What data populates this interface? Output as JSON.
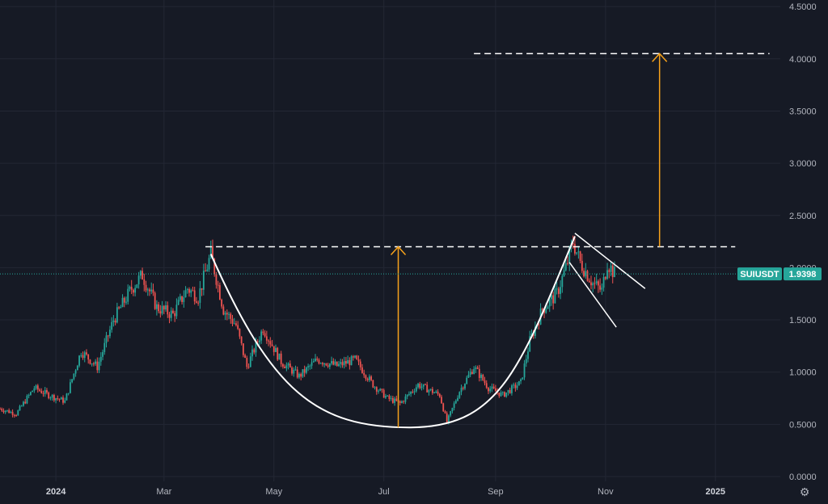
{
  "symbol": "SUIUSDT",
  "colors": {
    "background": "#161a25",
    "grid": "#232734",
    "axis_text": "#b2b5be",
    "up": "#26a69a",
    "down": "#ef5350",
    "price_tag": "#26a69a",
    "annotation": "#ffffff",
    "arrow": "#f7a21b"
  },
  "icons": {
    "settings": "gear-icon"
  },
  "chart_data": {
    "type": "candlestick",
    "title": "",
    "xlabel": "",
    "ylabel": "",
    "grid": true,
    "ylim": [
      0,
      4.6
    ],
    "x_range": [
      "2023-12-01",
      "2025-02-06"
    ],
    "y_ticks": [
      "4.5000",
      "4.0000",
      "3.5000",
      "3.0000",
      "2.5000",
      "2.0000",
      "1.5000",
      "1.0000",
      "0.5000",
      "0.0000"
    ],
    "x_ticks": [
      {
        "label": "2024",
        "date": "2024-01-01",
        "bold": true
      },
      {
        "label": "Mar",
        "date": "2024-03-01",
        "bold": false
      },
      {
        "label": "May",
        "date": "2024-05-01",
        "bold": false
      },
      {
        "label": "Jul",
        "date": "2024-07-01",
        "bold": false
      },
      {
        "label": "Sep",
        "date": "2024-09-01",
        "bold": false
      },
      {
        "label": "Nov",
        "date": "2024-11-01",
        "bold": false
      },
      {
        "label": "2025",
        "date": "2025-01-01",
        "bold": true
      }
    ],
    "last_price": 1.9398,
    "last_price_label": "1.9398",
    "close_path": [
      [
        "2023-12-01",
        0.65
      ],
      [
        "2023-12-10",
        0.6
      ],
      [
        "2023-12-20",
        0.85
      ],
      [
        "2023-12-28",
        0.78
      ],
      [
        "2024-01-06",
        0.72
      ],
      [
        "2024-01-15",
        1.2
      ],
      [
        "2024-01-24",
        1.05
      ],
      [
        "2024-02-02",
        1.5
      ],
      [
        "2024-02-12",
        1.8
      ],
      [
        "2024-02-18",
        1.93
      ],
      [
        "2024-02-26",
        1.62
      ],
      [
        "2024-03-06",
        1.55
      ],
      [
        "2024-03-14",
        1.8
      ],
      [
        "2024-03-20",
        1.72
      ],
      [
        "2024-03-27",
        2.13
      ],
      [
        "2024-04-03",
        1.6
      ],
      [
        "2024-04-10",
        1.45
      ],
      [
        "2024-04-16",
        1.05
      ],
      [
        "2024-04-25",
        1.42
      ],
      [
        "2024-05-05",
        1.1
      ],
      [
        "2024-05-15",
        0.96
      ],
      [
        "2024-05-25",
        1.12
      ],
      [
        "2024-06-05",
        1.06
      ],
      [
        "2024-06-15",
        1.12
      ],
      [
        "2024-06-25",
        0.88
      ],
      [
        "2024-07-03",
        0.75
      ],
      [
        "2024-07-10",
        0.7
      ],
      [
        "2024-07-20",
        0.88
      ],
      [
        "2024-08-01",
        0.78
      ],
      [
        "2024-08-05",
        0.52
      ],
      [
        "2024-08-12",
        0.82
      ],
      [
        "2024-08-20",
        1.05
      ],
      [
        "2024-08-28",
        0.85
      ],
      [
        "2024-09-05",
        0.78
      ],
      [
        "2024-09-15",
        0.9
      ],
      [
        "2024-09-20",
        1.3
      ],
      [
        "2024-09-27",
        1.6
      ],
      [
        "2024-10-05",
        1.75
      ],
      [
        "2024-10-10",
        2.0
      ],
      [
        "2024-10-14",
        2.25
      ],
      [
        "2024-10-18",
        2.05
      ],
      [
        "2024-10-25",
        1.85
      ],
      [
        "2024-10-30",
        1.78
      ],
      [
        "2024-11-02",
        2.05
      ],
      [
        "2024-11-06",
        1.94
      ]
    ],
    "annotations": {
      "resistance_line": {
        "y": 2.2,
        "from": "2024-03-24",
        "to": "2025-01-12"
      },
      "target_line": {
        "y": 4.05,
        "from": "2024-08-20",
        "to": "2025-01-31"
      },
      "cup_curve": {
        "start": [
          "2024-03-27",
          2.13
        ],
        "bottom": [
          "2024-07-15",
          0.47
        ],
        "end": [
          "2024-10-15",
          2.3
        ]
      },
      "handle_upper": {
        "from": [
          "2024-10-15",
          2.33
        ],
        "to": [
          "2024-11-23",
          1.8
        ]
      },
      "handle_lower": {
        "from": [
          "2024-10-12",
          2.05
        ],
        "to": [
          "2024-11-07",
          1.43
        ]
      },
      "arrow_cup": {
        "date": "2024-07-09",
        "from": 0.47,
        "to": 2.2
      },
      "arrow_target": {
        "date": "2024-12-01",
        "from": 2.2,
        "to": 4.05
      }
    }
  }
}
